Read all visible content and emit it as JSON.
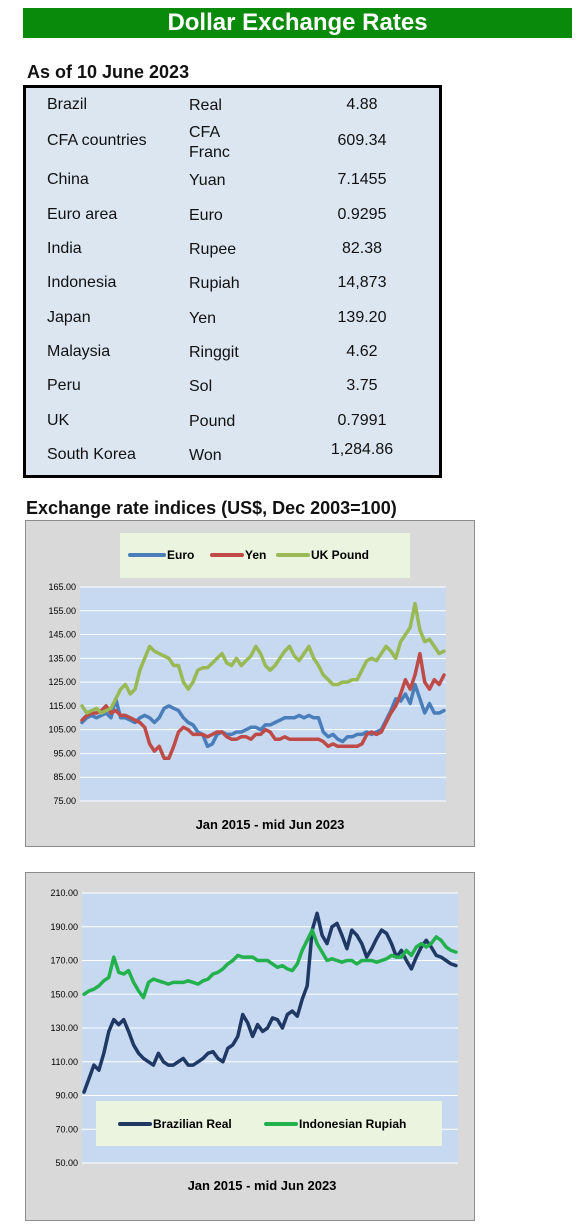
{
  "header": {
    "title": "Dollar Exchange Rates"
  },
  "rates": {
    "as_of": "As of 10 June 2023",
    "rows": [
      {
        "country": "Brazil",
        "currency": "Real",
        "value": "4.88"
      },
      {
        "country": "CFA countries",
        "currency": "CFA Franc",
        "value": "609.34"
      },
      {
        "country": "China",
        "currency": "Yuan",
        "value": "7.1455"
      },
      {
        "country": "Euro area",
        "currency": "Euro",
        "value": "0.9295"
      },
      {
        "country": "India",
        "currency": "Rupee",
        "value": "82.38"
      },
      {
        "country": "Indonesia",
        "currency": "Rupiah",
        "value": "14,873"
      },
      {
        "country": "Japan",
        "currency": "Yen",
        "value": "139.20"
      },
      {
        "country": "Malaysia",
        "currency": "Ringgit",
        "value": "4.62"
      },
      {
        "country": "Peru",
        "currency": "Sol",
        "value": "3.75"
      },
      {
        "country": "UK",
        "currency": "Pound",
        "value": "0.7991"
      },
      {
        "country": "South Korea",
        "currency": "Won",
        "value": "1,284.86"
      }
    ]
  },
  "indices_heading": "Exchange rate indices (US$, Dec 2003=100)",
  "chart_data": [
    {
      "type": "line",
      "xlabel": "Jan 2015 -  mid Jun 2023",
      "ylim": [
        75,
        165
      ],
      "yticks": [
        "75.00",
        "85.00",
        "95.00",
        "105.00",
        "115.00",
        "125.00",
        "135.00",
        "145.00",
        "155.00",
        "165.00"
      ],
      "legend_position": "top",
      "grid": true,
      "series": [
        {
          "name": "Euro",
          "color": "#4a7ebb",
          "values": [
            108,
            110,
            111,
            110,
            111,
            112,
            110,
            118,
            110,
            110,
            109,
            108,
            110,
            111,
            110,
            108,
            110,
            114,
            115,
            114,
            113,
            110,
            108,
            107,
            104,
            103,
            98,
            99,
            103,
            104,
            103,
            103,
            104,
            104,
            105,
            106,
            106,
            105,
            107,
            107,
            108,
            109,
            110,
            110,
            110,
            111,
            110,
            111,
            110,
            110,
            104,
            102,
            103,
            101,
            100,
            102,
            102,
            103,
            103,
            104,
            103,
            104,
            105,
            109,
            113,
            118,
            117,
            120,
            116,
            124,
            118,
            112,
            116,
            112,
            112,
            113
          ]
        },
        {
          "name": "Yen",
          "color": "#be4b48",
          "values": [
            109,
            111,
            112,
            112,
            113,
            115,
            112,
            113,
            111,
            111,
            110,
            109,
            108,
            106,
            99,
            96,
            98,
            93,
            93,
            98,
            104,
            106,
            105,
            103,
            103,
            103,
            102,
            103,
            104,
            104,
            102,
            101,
            101,
            102,
            102,
            101,
            103,
            103,
            105,
            104,
            101,
            101,
            102,
            101,
            101,
            101,
            101,
            101,
            101,
            101,
            100,
            98,
            99,
            98,
            98,
            98,
            98,
            98,
            99,
            103,
            104,
            103,
            104,
            108,
            112,
            115,
            120,
            126,
            122,
            128,
            137,
            125,
            122,
            126,
            124,
            128
          ]
        },
        {
          "name": "UK Pound",
          "color": "#98b954",
          "values": [
            115,
            112,
            113,
            114,
            112,
            113,
            114,
            118,
            122,
            124,
            120,
            122,
            130,
            135,
            140,
            138,
            137,
            136,
            135,
            132,
            132,
            125,
            122,
            125,
            130,
            131,
            131,
            133,
            135,
            137,
            133,
            132,
            135,
            132,
            134,
            136,
            140,
            137,
            132,
            130,
            132,
            135,
            138,
            140,
            136,
            134,
            137,
            140,
            135,
            132,
            128,
            126,
            124,
            124,
            125,
            125,
            126,
            126,
            130,
            134,
            135,
            134,
            137,
            140,
            138,
            135,
            142,
            145,
            148,
            158,
            147,
            142,
            143,
            140,
            137,
            138
          ]
        }
      ]
    },
    {
      "type": "line",
      "xlabel": "Jan 2015 - mid Jun  2023",
      "ylim": [
        50,
        210
      ],
      "yticks": [
        "50.00",
        "70.00",
        "90.00",
        "110.00",
        "130.00",
        "150.00",
        "170.00",
        "190.00",
        "210.00"
      ],
      "legend_position": "bottom",
      "grid": true,
      "series": [
        {
          "name": "Brazilian Real",
          "color": "#1f3864",
          "values": [
            92,
            100,
            108,
            105,
            115,
            128,
            135,
            132,
            135,
            128,
            120,
            115,
            112,
            110,
            108,
            115,
            110,
            108,
            108,
            110,
            112,
            108,
            108,
            110,
            112,
            115,
            116,
            112,
            110,
            118,
            120,
            125,
            138,
            133,
            125,
            132,
            128,
            130,
            136,
            135,
            130,
            138,
            140,
            137,
            147,
            155,
            188,
            198,
            185,
            180,
            190,
            192,
            185,
            177,
            188,
            185,
            180,
            172,
            177,
            183,
            188,
            186,
            180,
            172,
            176,
            170,
            165,
            172,
            178,
            182,
            178,
            173,
            172,
            170,
            168,
            167
          ]
        },
        {
          "name": "Indonesian Rupiah",
          "color": "#23b14d",
          "values": [
            150,
            152,
            153,
            155,
            158,
            160,
            172,
            163,
            162,
            164,
            157,
            152,
            148,
            157,
            159,
            158,
            157,
            156,
            157,
            157,
            157,
            158,
            157,
            156,
            158,
            159,
            162,
            163,
            165,
            168,
            170,
            173,
            172,
            172,
            172,
            170,
            170,
            170,
            168,
            166,
            167,
            165,
            164,
            168,
            176,
            182,
            188,
            180,
            175,
            170,
            171,
            170,
            169,
            170,
            170,
            168,
            170,
            170,
            170,
            169,
            170,
            171,
            173,
            172,
            172,
            176,
            173,
            178,
            180,
            178,
            180,
            184,
            182,
            178,
            176,
            175
          ]
        }
      ]
    }
  ]
}
